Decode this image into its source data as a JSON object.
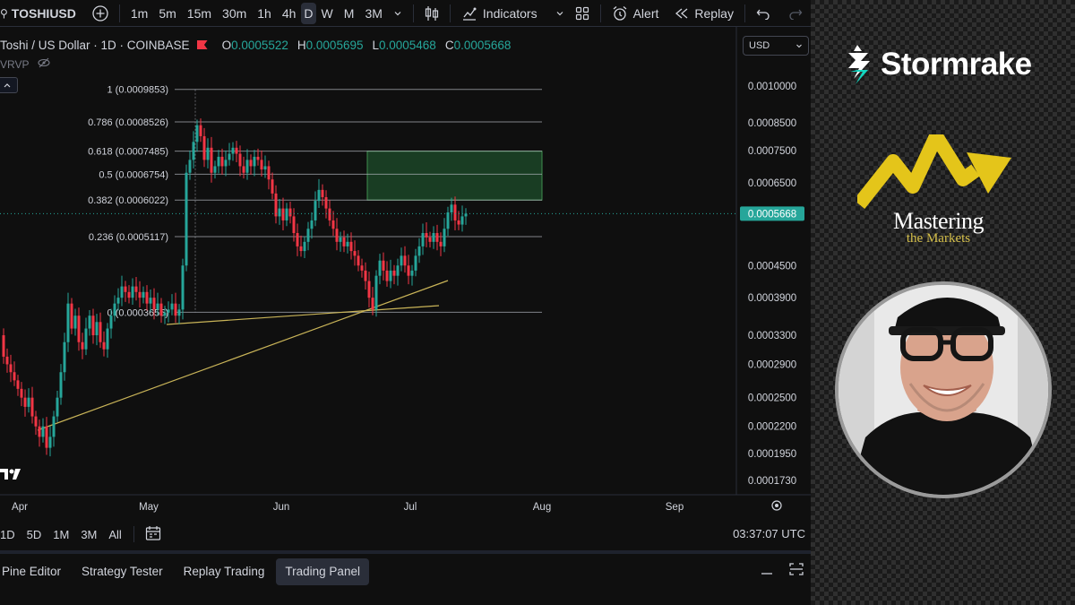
{
  "toolbar": {
    "symbol": "TOSHIUSD",
    "intervals": [
      "1m",
      "5m",
      "15m",
      "30m",
      "1h",
      "4h",
      "D",
      "W",
      "M",
      "3M"
    ],
    "active_interval": "D",
    "indicators_label": "Indicators",
    "alert_label": "Alert",
    "replay_label": "Replay"
  },
  "legend": {
    "title": "Toshi / US Dollar · 1D · COINBASE",
    "open_key": "O",
    "open": "0.0005522",
    "high_key": "H",
    "high": "0.0005695",
    "low_key": "L",
    "low": "0.0005468",
    "close_key": "C",
    "close": "0.0005668",
    "indicator": "VRVP"
  },
  "currency": "USD",
  "colors": {
    "up": "#26a69a",
    "down": "#f23645",
    "fib_line": "#b2b5be",
    "trend": "#c9b458",
    "zone": "#1e4d2b",
    "bg": "#0f0f0f"
  },
  "chart_data": {
    "type": "candlestick",
    "symbol": "TOSHIUSD",
    "timeframe": "1D",
    "y_scale": "log",
    "x_labels": [
      "Apr",
      "May",
      "Jun",
      "Jul",
      "Aug",
      "Sep"
    ],
    "y_ticks": [
      "0.0010000",
      "0.0008500",
      "0.0007500",
      "0.0006500",
      "0.0004500",
      "0.0003900",
      "0.0003300",
      "0.0002900",
      "0.0002500",
      "0.0002200",
      "0.0001950",
      "0.0001730"
    ],
    "y_tick_values": [
      0.001,
      0.00085,
      0.00075,
      0.00065,
      0.00045,
      0.00039,
      0.00033,
      0.00029,
      0.00025,
      0.00022,
      0.000195,
      0.000173
    ],
    "last_price": "0.0005668",
    "last_price_value": 0.0005668,
    "fib_levels": [
      {
        "label": "1 (0.0009853)",
        "value": 0.0009853
      },
      {
        "label": "0.786 (0.0008526)",
        "value": 0.0008526
      },
      {
        "label": "0.618 (0.0007485)",
        "value": 0.0007485
      },
      {
        "label": "0.5 (0.0006754)",
        "value": 0.0006754
      },
      {
        "label": "0.382 (0.0006022)",
        "value": 0.0006022
      },
      {
        "label": "0.236 (0.0005117)",
        "value": 0.0005117
      },
      {
        "label": "0 (0.0003655)",
        "value": 0.0003655
      }
    ],
    "zone": {
      "top": 0.0007485,
      "bottom": 0.0006022
    }
  },
  "range_bar": {
    "ranges": [
      "1D",
      "5D",
      "1M",
      "3M",
      "All"
    ],
    "time": "03:37:07 UTC"
  },
  "bottom_tabs": [
    "Pine Editor",
    "Strategy Tester",
    "Replay Trading",
    "Trading Panel"
  ],
  "active_bottom_tab": "Trading Panel",
  "brand": {
    "company": "Stormrake",
    "show_title": "Mastering",
    "show_subtitle": "the Markets"
  }
}
